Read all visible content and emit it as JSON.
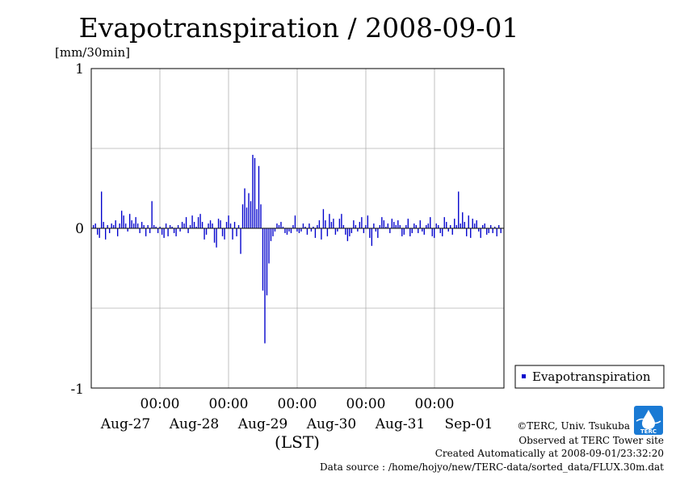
{
  "chart_data": {
    "type": "bar",
    "title": "Evapotranspiration / 2008-09-01",
    "ylabel": "[mm/30min]",
    "xlabel": "(LST)",
    "ylim": [
      -1,
      1
    ],
    "y_ticks": [
      "1",
      "0",
      "-1"
    ],
    "x_range_days": [
      0,
      6
    ],
    "time_labels": [
      "00:00",
      "00:00",
      "00:00",
      "00:00",
      "00:00"
    ],
    "date_labels": [
      "Aug-27",
      "Aug-28",
      "Aug-29",
      "Aug-30",
      "Aug-31",
      "Sep-01"
    ],
    "grid": true,
    "legend_position": "right",
    "color": "#0000cc",
    "series": [
      {
        "name": "Evapotranspiration",
        "values": [
          0.02,
          0.03,
          -0.04,
          -0.06,
          0.23,
          0.04,
          -0.07,
          0.02,
          -0.03,
          0.03,
          0.02,
          0.05,
          -0.05,
          0.03,
          0.11,
          0.08,
          0.03,
          -0.02,
          0.09,
          0.05,
          0.03,
          0.07,
          0.03,
          -0.03,
          0.04,
          0.02,
          -0.05,
          0.02,
          -0.03,
          0.17,
          0.02,
          0.01,
          -0.03,
          0.01,
          -0.04,
          -0.06,
          0.03,
          -0.05,
          0.02,
          0.01,
          -0.03,
          -0.05,
          0.02,
          -0.02,
          0.04,
          0.03,
          0.07,
          -0.03,
          0.02,
          0.08,
          0.04,
          0.01,
          0.07,
          0.09,
          0.04,
          -0.07,
          -0.04,
          0.03,
          0.05,
          0.03,
          -0.09,
          -0.12,
          0.06,
          0.05,
          -0.05,
          -0.07,
          0.04,
          0.08,
          0.03,
          -0.07,
          0.04,
          -0.05,
          0.02,
          -0.16,
          0.15,
          0.25,
          0.13,
          0.22,
          0.17,
          0.46,
          0.44,
          0.12,
          0.39,
          0.15,
          -0.39,
          -0.72,
          -0.42,
          -0.22,
          -0.08,
          -0.05,
          -0.02,
          0.03,
          0.02,
          0.04,
          0.01,
          -0.03,
          -0.04,
          -0.02,
          -0.03,
          0.02,
          0.08,
          -0.02,
          -0.03,
          -0.02,
          0.03,
          0.01,
          -0.04,
          0.03,
          -0.02,
          0.01,
          -0.06,
          0.02,
          0.05,
          -0.07,
          0.12,
          0.05,
          -0.05,
          0.09,
          0.04,
          0.06,
          -0.04,
          -0.02,
          0.06,
          0.09,
          0.02,
          -0.04,
          -0.08,
          -0.05,
          -0.03,
          0.05,
          0.02,
          -0.02,
          0.04,
          0.07,
          -0.03,
          0.02,
          0.08,
          -0.06,
          -0.11,
          0.03,
          -0.02,
          -0.06,
          0.02,
          0.07,
          0.05,
          0.01,
          0.03,
          -0.03,
          0.06,
          0.04,
          0.02,
          0.05,
          0.02,
          -0.05,
          -0.04,
          0.02,
          0.06,
          -0.05,
          -0.03,
          0.03,
          0.02,
          -0.03,
          0.05,
          -0.02,
          -0.04,
          0.02,
          0.03,
          0.07,
          -0.05,
          -0.06,
          0.03,
          0.02,
          -0.03,
          -0.05,
          0.07,
          0.04,
          -0.02,
          0.02,
          -0.04,
          0.06,
          0.02,
          0.23,
          0.03,
          0.1,
          0.04,
          -0.05,
          0.08,
          -0.06,
          0.06,
          0.03,
          0.05,
          -0.02,
          -0.06,
          0.02,
          0.03,
          -0.04,
          -0.03,
          0.02,
          -0.03,
          0.01,
          -0.05,
          0.02,
          -0.03
        ]
      }
    ]
  },
  "credits": {
    "copyright": "©TERC, Univ. Tsukuba",
    "observed": "Observed at TERC Tower site",
    "created": "Created Automatically at 2008-09-01/23:32:20",
    "source": "Data source : /home/hojyo/new/TERC-data/sorted_data/FLUX.30m.dat",
    "logo_text": "TERC"
  }
}
